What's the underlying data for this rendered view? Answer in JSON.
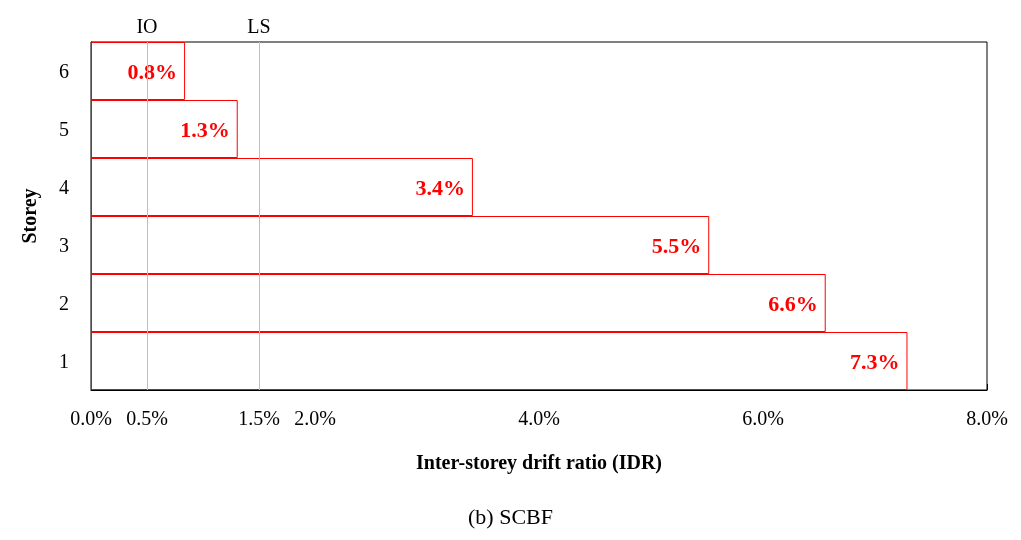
{
  "chart_data": {
    "type": "bar",
    "orientation": "horizontal",
    "title": "(b) SCBF",
    "xlabel": "Inter-storey drift ratio (IDR)",
    "ylabel": "Storey",
    "categories": [
      "6",
      "5",
      "4",
      "3",
      "2",
      "1"
    ],
    "values": [
      0.84,
      1.31,
      3.41,
      5.52,
      6.56,
      7.29
    ],
    "value_labels": [
      "0.8%",
      "1.3%",
      "3.4%",
      "5.5%",
      "6.6%",
      "7.3%"
    ],
    "color": "#ff0000",
    "xlim": [
      0,
      8
    ],
    "xticks": [
      {
        "value": 0,
        "label": "0.0%"
      },
      {
        "value": 0.5,
        "label": "0.5%"
      },
      {
        "value": 1.5,
        "label": "1.5%"
      },
      {
        "value": 2,
        "label": "2.0%"
      },
      {
        "value": 4,
        "label": "4.0%"
      },
      {
        "value": 6,
        "label": "6.0%"
      },
      {
        "value": 8,
        "label": "8.0%"
      }
    ],
    "ref_lines": [
      {
        "axis": "x",
        "value": 0.5,
        "label": "IO",
        "color": "#bfbfbf"
      },
      {
        "axis": "x",
        "value": 1.5,
        "label": "LS",
        "color": "#bfbfbf"
      }
    ],
    "grid": false
  }
}
